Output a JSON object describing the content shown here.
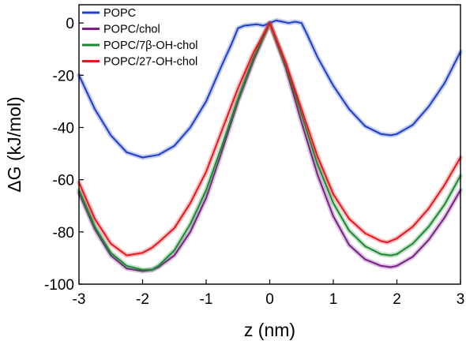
{
  "chart_data": {
    "type": "line",
    "xlabel": "z (nm)",
    "ylabel": "ΔG (kJ/mol)",
    "xlim": [
      -3,
      3
    ],
    "ylim": [
      -100,
      7
    ],
    "xticks": [
      -3,
      -2,
      -1,
      0,
      1,
      2,
      3
    ],
    "xtick_labels": [
      "-3",
      "-2",
      "-1",
      "0",
      "1",
      "2",
      "3"
    ],
    "yticks": [
      0,
      -20,
      -40,
      -60,
      -80,
      -100
    ],
    "ytick_labels": [
      "0",
      "-20",
      "-40",
      "-60",
      "-80",
      "-100"
    ],
    "legend_position": "top-left",
    "grid": false,
    "series": [
      {
        "name": "POPC",
        "color": "#1f3fc6",
        "x": [
          -3.0,
          -2.75,
          -2.5,
          -2.25,
          -2.0,
          -1.75,
          -1.5,
          -1.25,
          -1.0,
          -0.75,
          -0.6,
          -0.5,
          -0.4,
          -0.2,
          -0.1,
          0.0,
          0.1,
          0.2,
          0.3,
          0.4,
          0.5,
          0.6,
          0.75,
          1.0,
          1.25,
          1.5,
          1.75,
          1.9,
          2.0,
          2.25,
          2.5,
          2.75,
          3.0
        ],
        "y": [
          -20,
          -33,
          -43,
          -49.5,
          -51.5,
          -50.5,
          -47,
          -40,
          -30,
          -16,
          -8,
          -2,
          -1,
          -0.5,
          -1,
          0,
          1,
          0.5,
          0,
          0.5,
          0,
          -5,
          -13,
          -24,
          -33,
          -39.5,
          -42.5,
          -43,
          -42.5,
          -39,
          -32,
          -23,
          -11
        ]
      },
      {
        "name": "POPC/chol",
        "color": "#7a1f86",
        "x": [
          -3.0,
          -2.75,
          -2.5,
          -2.25,
          -2.0,
          -1.85,
          -1.75,
          -1.5,
          -1.25,
          -1.0,
          -0.75,
          -0.5,
          -0.25,
          0.0,
          0.25,
          0.5,
          0.75,
          1.0,
          1.25,
          1.5,
          1.75,
          1.9,
          2.0,
          2.25,
          2.5,
          2.75,
          3.0
        ],
        "y": [
          -65,
          -79,
          -89,
          -94,
          -95,
          -94.5,
          -93.5,
          -89,
          -80,
          -67,
          -49,
          -30,
          -14,
          0,
          -17,
          -38,
          -58,
          -74,
          -85,
          -90.5,
          -93,
          -93.5,
          -93,
          -89.5,
          -83,
          -74.5,
          -64
        ]
      },
      {
        "name": "POPC/7β-OH-chol",
        "color": "#1d8a33",
        "x": [
          -3.0,
          -2.75,
          -2.5,
          -2.25,
          -2.0,
          -1.85,
          -1.75,
          -1.5,
          -1.25,
          -1.0,
          -0.75,
          -0.5,
          -0.25,
          0.0,
          0.25,
          0.5,
          0.75,
          1.0,
          1.25,
          1.5,
          1.75,
          1.9,
          2.0,
          2.25,
          2.5,
          2.75,
          3.0
        ],
        "y": [
          -64,
          -78,
          -88,
          -93,
          -94.5,
          -94.5,
          -93,
          -87,
          -77,
          -64,
          -47,
          -29,
          -13,
          0,
          -16,
          -35,
          -54,
          -69,
          -79.5,
          -85.5,
          -88.5,
          -89,
          -88.5,
          -84.5,
          -78,
          -69.5,
          -58.5
        ]
      },
      {
        "name": "POPC/27-OH-chol",
        "color": "#e8161c",
        "x": [
          -3.0,
          -2.75,
          -2.5,
          -2.25,
          -2.0,
          -1.85,
          -1.75,
          -1.5,
          -1.25,
          -1.0,
          -0.75,
          -0.5,
          -0.25,
          0.0,
          0.25,
          0.5,
          0.75,
          1.0,
          1.25,
          1.5,
          1.75,
          1.85,
          2.0,
          2.25,
          2.5,
          2.75,
          3.0
        ],
        "y": [
          -61,
          -75,
          -84.5,
          -89,
          -88,
          -86,
          -84,
          -78.5,
          -69,
          -57,
          -41,
          -25,
          -11,
          0,
          -15,
          -33,
          -51,
          -65.5,
          -75,
          -80.5,
          -83.5,
          -84,
          -82.5,
          -78,
          -71,
          -62,
          -51.5
        ]
      }
    ]
  }
}
